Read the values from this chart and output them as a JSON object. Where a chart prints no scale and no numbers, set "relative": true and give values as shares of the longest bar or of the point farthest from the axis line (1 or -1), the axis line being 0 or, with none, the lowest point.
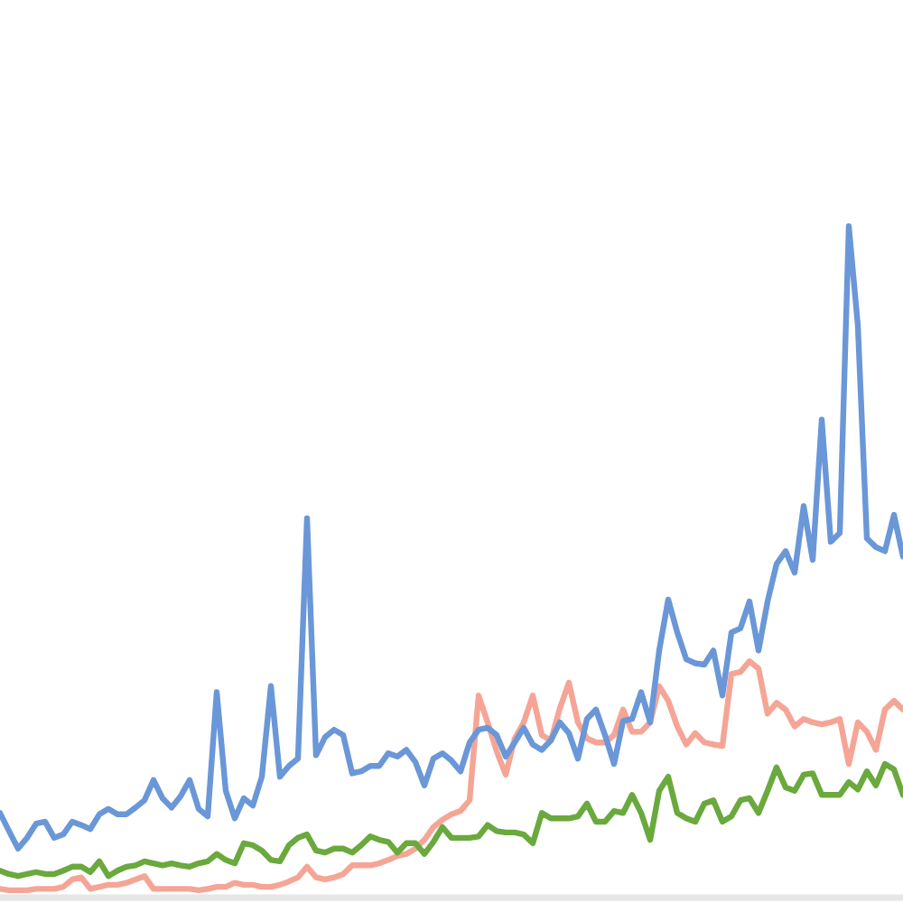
{
  "chart_data": {
    "type": "line",
    "relative": true,
    "categories": [
      null,
      null,
      null,
      null,
      null,
      null,
      null,
      null,
      null,
      null,
      null,
      null,
      null,
      null,
      null,
      null,
      null,
      null,
      null,
      null,
      null,
      null,
      null,
      null,
      null,
      null,
      null,
      null,
      null,
      null,
      null,
      null,
      null,
      null,
      null,
      null,
      null,
      null,
      null,
      null,
      null,
      null,
      null,
      null,
      null,
      null,
      null,
      null,
      null,
      null,
      null,
      null,
      null,
      null,
      null,
      null,
      null,
      null,
      null,
      null,
      null,
      null,
      null,
      null,
      null,
      null,
      null,
      null,
      null,
      null,
      null,
      null,
      null,
      null,
      null,
      null,
      null,
      null,
      null,
      null,
      null,
      null,
      null,
      null,
      null,
      null,
      null,
      null,
      null,
      null,
      null,
      null,
      null,
      null,
      null,
      null,
      null,
      null,
      null,
      null,
      null
    ],
    "series": [
      {
        "color": "#f5a596",
        "values": [
          0.013,
          0.011,
          0.011,
          0.011,
          0.013,
          0.013,
          0.013,
          0.016,
          0.027,
          0.03,
          0.013,
          0.016,
          0.019,
          0.019,
          0.022,
          0.027,
          0.032,
          0.013,
          0.013,
          0.013,
          0.013,
          0.013,
          0.011,
          0.013,
          0.016,
          0.016,
          0.022,
          0.019,
          0.019,
          0.016,
          0.016,
          0.019,
          0.024,
          0.03,
          0.046,
          0.03,
          0.027,
          0.03,
          0.035,
          0.048,
          0.048,
          0.048,
          0.051,
          0.056,
          0.062,
          0.065,
          0.073,
          0.086,
          0.105,
          0.116,
          0.124,
          0.129,
          0.145,
          0.301,
          0.261,
          0.218,
          0.183,
          0.237,
          0.261,
          0.301,
          0.242,
          0.234,
          0.282,
          0.32,
          0.261,
          0.237,
          0.231,
          0.231,
          0.242,
          0.28,
          0.247,
          0.247,
          0.261,
          0.315,
          0.293,
          0.255,
          0.228,
          0.245,
          0.231,
          0.228,
          0.226,
          0.333,
          0.336,
          0.352,
          0.341,
          0.274,
          0.29,
          0.28,
          0.255,
          0.266,
          0.261,
          0.258,
          0.261,
          0.266,
          0.199,
          0.261,
          0.247,
          0.22,
          0.28,
          0.293,
          0.28
        ]
      },
      {
        "color": "#6aa93d",
        "values": [
          0.04,
          0.035,
          0.032,
          0.035,
          0.038,
          0.035,
          0.035,
          0.04,
          0.046,
          0.046,
          0.038,
          0.054,
          0.032,
          0.04,
          0.046,
          0.048,
          0.054,
          0.051,
          0.048,
          0.051,
          0.048,
          0.046,
          0.051,
          0.054,
          0.065,
          0.056,
          0.051,
          0.081,
          0.078,
          0.07,
          0.056,
          0.054,
          0.078,
          0.089,
          0.094,
          0.07,
          0.067,
          0.073,
          0.073,
          0.067,
          0.078,
          0.091,
          0.086,
          0.083,
          0.067,
          0.081,
          0.081,
          0.065,
          0.083,
          0.105,
          0.089,
          0.089,
          0.089,
          0.091,
          0.108,
          0.099,
          0.097,
          0.097,
          0.094,
          0.081,
          0.126,
          0.118,
          0.118,
          0.118,
          0.121,
          0.14,
          0.113,
          0.113,
          0.129,
          0.126,
          0.153,
          0.126,
          0.086,
          0.159,
          0.18,
          0.126,
          0.118,
          0.113,
          0.14,
          0.145,
          0.113,
          0.121,
          0.145,
          0.148,
          0.126,
          0.159,
          0.194,
          0.164,
          0.159,
          0.183,
          0.185,
          0.153,
          0.153,
          0.153,
          0.172,
          0.161,
          0.188,
          0.167,
          0.199,
          0.191,
          0.153
        ]
      },
      {
        "color": "#6a97d7",
        "values": [
          0.126,
          0.099,
          0.073,
          0.089,
          0.11,
          0.113,
          0.089,
          0.094,
          0.113,
          0.108,
          0.102,
          0.124,
          0.132,
          0.124,
          0.124,
          0.134,
          0.145,
          0.175,
          0.148,
          0.134,
          0.151,
          0.175,
          0.132,
          0.121,
          0.306,
          0.159,
          0.118,
          0.148,
          0.137,
          0.18,
          0.315,
          0.18,
          0.196,
          0.207,
          0.565,
          0.212,
          0.239,
          0.25,
          0.242,
          0.185,
          0.188,
          0.196,
          0.196,
          0.215,
          0.21,
          0.22,
          0.202,
          0.167,
          0.207,
          0.215,
          0.204,
          0.188,
          0.231,
          0.25,
          0.253,
          0.242,
          0.21,
          0.231,
          0.253,
          0.228,
          0.22,
          0.234,
          0.261,
          0.245,
          0.207,
          0.266,
          0.28,
          0.242,
          0.199,
          0.263,
          0.266,
          0.306,
          0.261,
          0.368,
          0.444,
          0.395,
          0.355,
          0.349,
          0.347,
          0.368,
          0.301,
          0.395,
          0.401,
          0.441,
          0.368,
          0.441,
          0.497,
          0.516,
          0.484,
          0.583,
          0.503,
          0.712,
          0.53,
          0.543,
          1,
          0.852,
          0.535,
          0.522,
          0.516,
          0.57,
          0.508
        ]
      }
    ]
  }
}
